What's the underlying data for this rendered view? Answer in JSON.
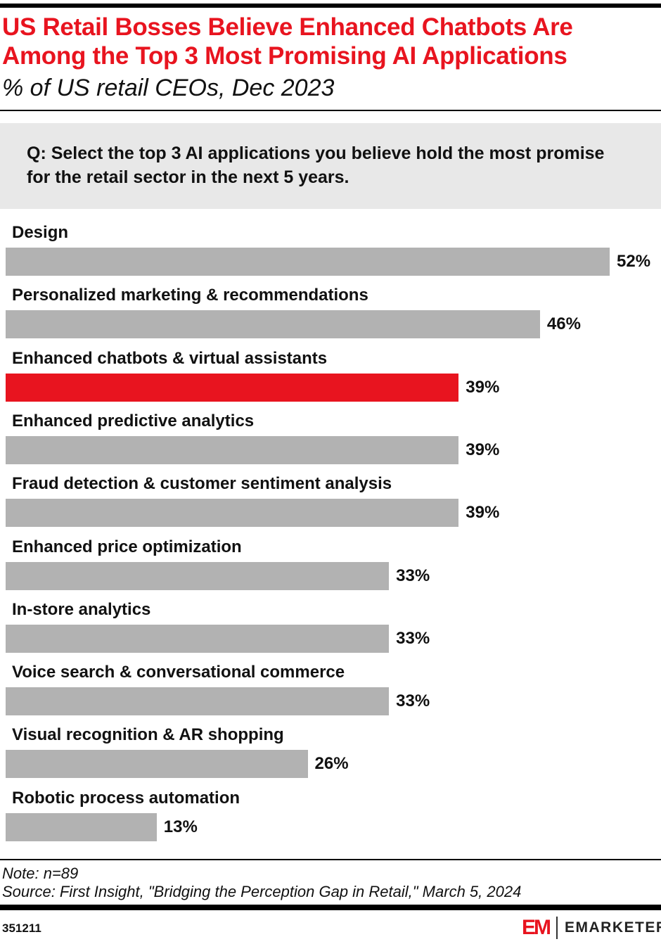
{
  "header": {
    "title": "US Retail Bosses Believe Enhanced Chatbots Are Among the Top 3 Most Promising AI Applications",
    "subtitle": "% of US retail CEOs, Dec 2023"
  },
  "question": "Q: Select the top 3 AI applications you believe hold the most promise for the retail sector in the next 5 years.",
  "chart_data": {
    "type": "bar",
    "orientation": "horizontal",
    "unit": "%",
    "xlim": [
      0,
      52
    ],
    "grid": false,
    "categories": [
      "Design",
      "Personalized marketing & recommendations",
      "Enhanced chatbots & virtual assistants",
      "Enhanced predictive analytics",
      "Fraud detection & customer sentiment analysis",
      "Enhanced price optimization",
      "In-store analytics",
      "Voice search & conversational commerce",
      "Visual recognition & AR shopping",
      "Robotic process automation"
    ],
    "values": [
      52,
      46,
      39,
      39,
      39,
      33,
      33,
      33,
      26,
      13
    ],
    "labels": [
      "52%",
      "46%",
      "39%",
      "39%",
      "39%",
      "33%",
      "33%",
      "33%",
      "26%",
      "13%"
    ],
    "highlight_index": 2,
    "colors": {
      "bar": "#b2b2b2",
      "highlight": "#e8141f"
    }
  },
  "footer": {
    "note": "Note: n=89",
    "source": "Source: First Insight, \"Bridging the Perception Gap in Retail,\" March 5, 2024",
    "chart_id": "351211",
    "logo_mark": "EM",
    "logo_text": "EMARKETER"
  }
}
